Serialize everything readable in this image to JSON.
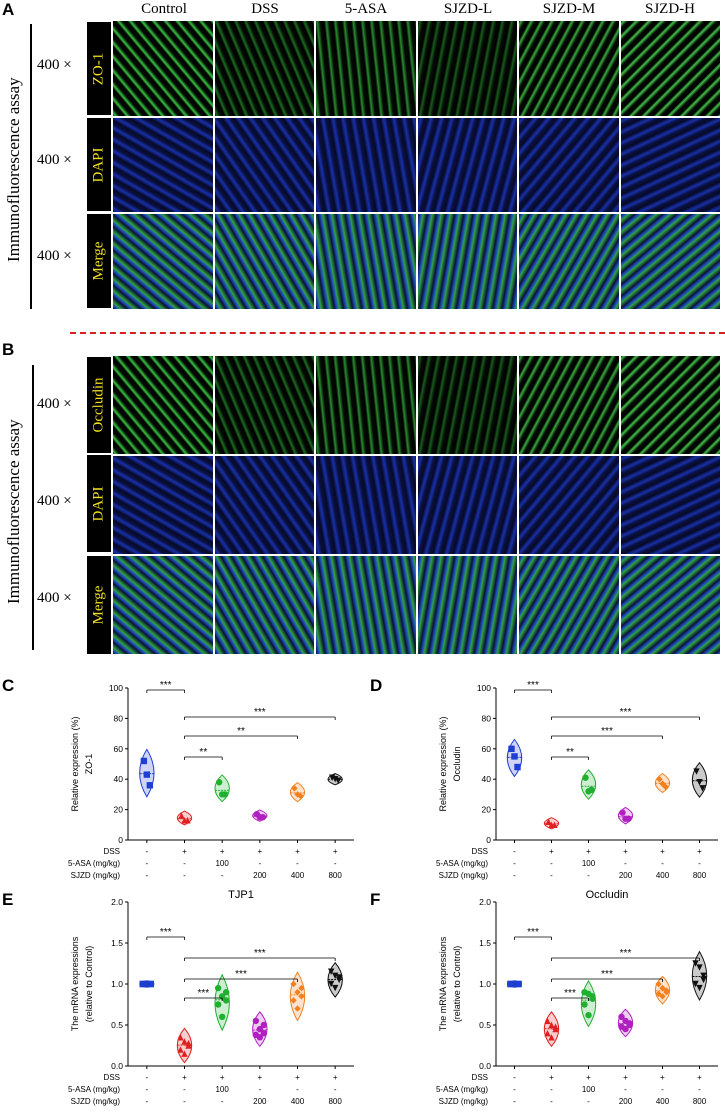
{
  "panels": {
    "A": "A",
    "B": "B",
    "C": "C",
    "D": "D",
    "E": "E",
    "F": "F"
  },
  "groups": [
    "Control",
    "DSS",
    "5-ASA",
    "SJZD-L",
    "SJZD-M",
    "SJZD-H"
  ],
  "assay_label": "Immunofluorescence assay",
  "magnification": "400 ×",
  "panelA_rows": [
    "ZO-1",
    "DAPI",
    "Merge"
  ],
  "panelB_rows": [
    "Occludin",
    "DAPI",
    "Merge"
  ],
  "colors": {
    "control": "#1f3fd0",
    "dss": "#e02020",
    "asa": "#20b030",
    "sjzd_l": "#b020c0",
    "sjzd_m": "#f08020",
    "sjzd_h": "#101010",
    "divider": "#d42020",
    "stain_label": "#f0e020"
  },
  "chart_data": [
    {
      "id": "C",
      "type": "violin",
      "ylabel": "Relative expression (%)",
      "ylabel2": "ZO-1",
      "ylim": [
        0,
        100
      ],
      "yticks": [
        "0",
        "20",
        "40",
        "60",
        "80",
        "100"
      ],
      "categories": [
        "Control",
        "DSS",
        "5-ASA",
        "SJZD-L",
        "SJZD-M",
        "SJZD-H"
      ],
      "series": [
        {
          "values": [
            52,
            43,
            36
          ]
        },
        {
          "values": [
            16,
            13,
            13
          ]
        },
        {
          "values": [
            38,
            30,
            30
          ]
        },
        {
          "values": [
            17,
            15,
            15
          ]
        },
        {
          "values": [
            34,
            30,
            29
          ]
        },
        {
          "values": [
            41,
            40,
            39
          ]
        }
      ],
      "significance": [
        {
          "from": 0,
          "to": 1,
          "label": "***"
        },
        {
          "from": 1,
          "to": 5,
          "label": "***"
        },
        {
          "from": 1,
          "to": 4,
          "label": "**"
        },
        {
          "from": 1,
          "to": 2,
          "label": "**"
        }
      ],
      "treatment_rows": [
        {
          "label": "DSS",
          "values": [
            "-",
            "+",
            "+",
            "+",
            "+",
            "+"
          ]
        },
        {
          "label": "5-ASA (mg/kg)",
          "values": [
            "-",
            "-",
            "100",
            "-",
            "-",
            "-"
          ]
        },
        {
          "label": "SJZD (mg/kg)",
          "values": [
            "-",
            "-",
            "-",
            "200",
            "400",
            "800"
          ]
        }
      ]
    },
    {
      "id": "D",
      "type": "violin",
      "ylabel": "Relative expression (%)",
      "ylabel2": "Occludin",
      "ylim": [
        0,
        100
      ],
      "yticks": [
        "0",
        "20",
        "40",
        "60",
        "80",
        "100"
      ],
      "categories": [
        "Control",
        "DSS",
        "5-ASA",
        "SJZD-L",
        "SJZD-M",
        "SJZD-H"
      ],
      "series": [
        {
          "values": [
            60,
            55,
            48
          ]
        },
        {
          "values": [
            12,
            10,
            10
          ]
        },
        {
          "values": [
            41,
            32,
            33
          ]
        },
        {
          "values": [
            18,
            14,
            14
          ]
        },
        {
          "values": [
            40,
            37,
            35
          ]
        },
        {
          "values": [
            45,
            38,
            34
          ]
        }
      ],
      "significance": [
        {
          "from": 0,
          "to": 1,
          "label": "***"
        },
        {
          "from": 1,
          "to": 5,
          "label": "***"
        },
        {
          "from": 1,
          "to": 4,
          "label": "***"
        },
        {
          "from": 1,
          "to": 2,
          "label": "**"
        }
      ],
      "treatment_rows": [
        {
          "label": "DSS",
          "values": [
            "-",
            "+",
            "+",
            "+",
            "+",
            "+"
          ]
        },
        {
          "label": "5-ASA (mg/kg)",
          "values": [
            "-",
            "-",
            "100",
            "-",
            "-",
            "-"
          ]
        },
        {
          "label": "SJZD (mg/kg)",
          "values": [
            "-",
            "-",
            "-",
            "200",
            "400",
            "800"
          ]
        }
      ]
    },
    {
      "id": "E",
      "type": "violin",
      "title": "TJP1",
      "ylabel": "The mRNA expressions",
      "ylabel2": "(relative to Control)",
      "ylim": [
        0,
        2.0
      ],
      "yticks": [
        "0.0",
        "0.5",
        "1.0",
        "1.5",
        "2.0"
      ],
      "categories": [
        "Control",
        "DSS",
        "5-ASA",
        "SJZD-L",
        "SJZD-M",
        "SJZD-H"
      ],
      "series": [
        {
          "values": [
            1.0,
            1.0,
            1.0,
            1.0,
            1.0,
            1.0
          ]
        },
        {
          "values": [
            0.35,
            0.3,
            0.25,
            0.2,
            0.15,
            0.28
          ]
        },
        {
          "values": [
            0.95,
            0.85,
            0.8,
            0.75,
            0.6,
            0.9
          ]
        },
        {
          "values": [
            0.55,
            0.45,
            0.4,
            0.38,
            0.35,
            0.5
          ]
        },
        {
          "values": [
            1.0,
            0.9,
            0.85,
            0.8,
            0.7,
            0.95
          ]
        },
        {
          "values": [
            1.15,
            1.1,
            1.05,
            1.0,
            0.95,
            1.08
          ]
        }
      ],
      "significance": [
        {
          "from": 0,
          "to": 1,
          "label": "***"
        },
        {
          "from": 1,
          "to": 5,
          "label": "***"
        },
        {
          "from": 1,
          "to": 4,
          "label": "***"
        },
        {
          "from": 1,
          "to": 2,
          "label": "***"
        }
      ],
      "treatment_rows": [
        {
          "label": "DSS",
          "values": [
            "-",
            "+",
            "+",
            "+",
            "+",
            "+"
          ]
        },
        {
          "label": "5-ASA (mg/kg)",
          "values": [
            "-",
            "-",
            "100",
            "-",
            "-",
            "-"
          ]
        },
        {
          "label": "SJZD (mg/kg)",
          "values": [
            "-",
            "-",
            "-",
            "200",
            "400",
            "800"
          ]
        }
      ]
    },
    {
      "id": "F",
      "type": "violin",
      "title": "Occludin",
      "ylabel": "The mRNA expressions",
      "ylabel2": "(relative to Control)",
      "ylim": [
        0,
        2.0
      ],
      "yticks": [
        "0.0",
        "0.5",
        "1.0",
        "1.5",
        "2.0"
      ],
      "categories": [
        "Control",
        "DSS",
        "5-ASA",
        "SJZD-L",
        "SJZD-M",
        "SJZD-H"
      ],
      "series": [
        {
          "values": [
            1.0,
            1.0,
            1.0,
            1.0,
            1.0,
            1.0
          ]
        },
        {
          "values": [
            0.55,
            0.5,
            0.45,
            0.4,
            0.35,
            0.48
          ]
        },
        {
          "values": [
            0.9,
            0.88,
            0.85,
            0.75,
            0.62,
            0.82
          ]
        },
        {
          "values": [
            0.6,
            0.55,
            0.5,
            0.48,
            0.45,
            0.52
          ]
        },
        {
          "values": [
            1.0,
            0.95,
            0.9,
            0.88,
            0.85,
            0.92
          ]
        },
        {
          "values": [
            1.25,
            1.2,
            1.1,
            1.0,
            0.95,
            1.05
          ]
        }
      ],
      "significance": [
        {
          "from": 0,
          "to": 1,
          "label": "***"
        },
        {
          "from": 1,
          "to": 5,
          "label": "***"
        },
        {
          "from": 1,
          "to": 4,
          "label": "***"
        },
        {
          "from": 1,
          "to": 2,
          "label": "***"
        }
      ],
      "treatment_rows": [
        {
          "label": "DSS",
          "values": [
            "-",
            "+",
            "+",
            "+",
            "+",
            "+"
          ]
        },
        {
          "label": "5-ASA (mg/kg)",
          "values": [
            "-",
            "-",
            "100",
            "-",
            "-",
            "-"
          ]
        },
        {
          "label": "SJZD (mg/kg)",
          "values": [
            "-",
            "-",
            "-",
            "200",
            "400",
            "800"
          ]
        }
      ]
    }
  ]
}
